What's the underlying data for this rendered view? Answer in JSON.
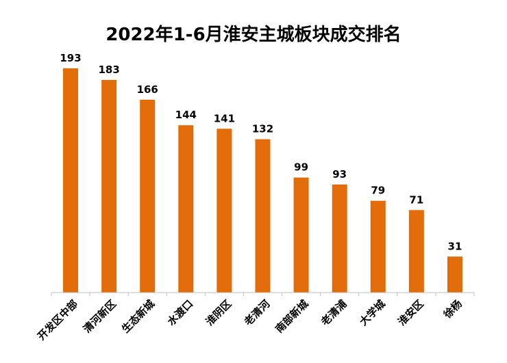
{
  "chart_data": {
    "type": "bar",
    "title": "2022年1-6月淮安主城板块成交排名",
    "categories": [
      "开发区中部",
      "清河新区",
      "生态新城",
      "水渡口",
      "淮阴区",
      "老清河",
      "南部新城",
      "老清浦",
      "大学城",
      "淮安区",
      "徐杨"
    ],
    "values": [
      193,
      183,
      166,
      144,
      141,
      132,
      99,
      93,
      79,
      71,
      31
    ],
    "xlabel": "",
    "ylabel": "",
    "ylim": [
      0,
      200
    ],
    "grid": false,
    "legend": "none",
    "bar_color": "#E36C0A",
    "axis_color": "#BFBFBF"
  }
}
